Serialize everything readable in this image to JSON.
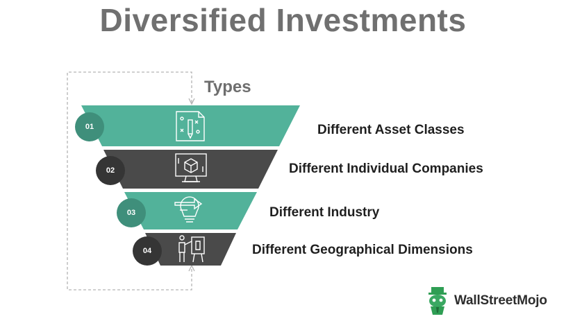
{
  "title": "Diversified Investments",
  "subtitle": "Types",
  "colors": {
    "teal": "#52b29a",
    "teal_dark": "#3f8f7b",
    "dark": "#4a4a4a",
    "dark_badge": "#353535",
    "title_gray": "#707070"
  },
  "items": [
    {
      "number": "01",
      "label": "Different Asset Classes",
      "icon": "document-pencil-icon"
    },
    {
      "number": "02",
      "label": "Different Individual Companies",
      "icon": "monitor-cube-icon"
    },
    {
      "number": "03",
      "label": "Different Industry",
      "icon": "lightbulb-arrows-icon"
    },
    {
      "number": "04",
      "label": "Different Geographical Dimensions",
      "icon": "presenter-board-icon"
    }
  ],
  "brand": {
    "name": "WallStreetMojo",
    "logo_icon": "mojo-logo-icon"
  }
}
